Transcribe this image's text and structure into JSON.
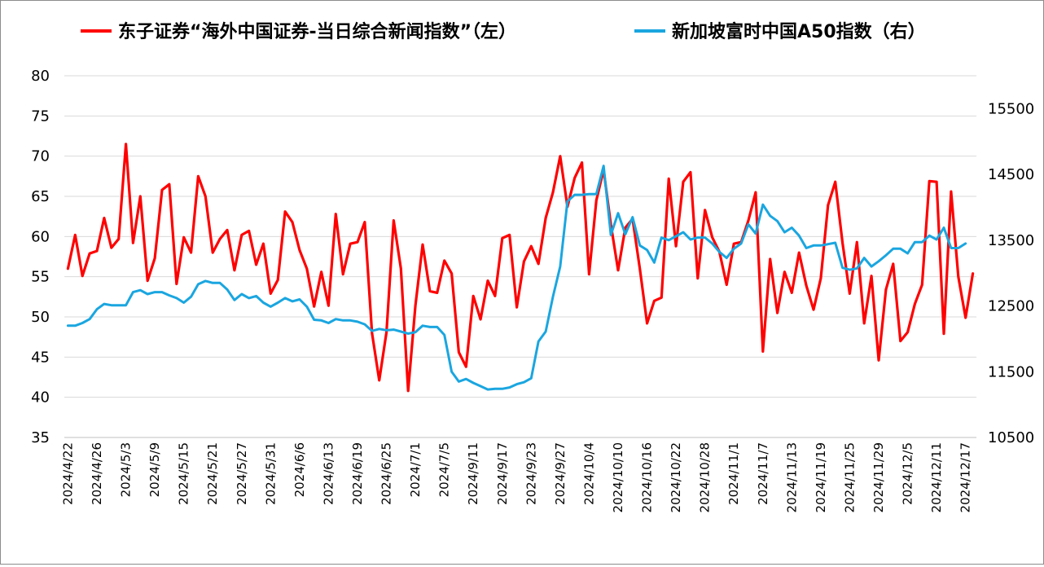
{
  "chart_data": {
    "type": "line",
    "title": "",
    "xlabel": "",
    "ylabel_left": "",
    "ylabel_right": "",
    "legend_position": "top",
    "grid": true,
    "ylim_left": [
      35,
      80
    ],
    "ylim_right": [
      10500,
      16000
    ],
    "yticks_left": [
      35,
      40,
      45,
      50,
      55,
      60,
      65,
      70,
      75,
      80
    ],
    "yticks_right": [
      10500,
      11500,
      12500,
      13500,
      14500,
      15500
    ],
    "x_tick_labels": [
      "2024/4/22",
      "2024/4/26",
      "2024/5/3",
      "2024/5/9",
      "2024/5/15",
      "2024/5/21",
      "2024/5/27",
      "2024/5/31",
      "2024/6/6",
      "2024/6/13",
      "2024/6/19",
      "2024/6/25",
      "2024/7/1",
      "2024/7/5",
      "2024/9/11",
      "2024/9/17",
      "2024/9/23",
      "2024/9/27",
      "2024/10/4",
      "2024/10/10",
      "2024/10/16",
      "2024/10/22",
      "2024/10/28",
      "2024/11/1",
      "2024/11/7",
      "2024/11/13",
      "2024/11/19",
      "2024/11/25",
      "2024/11/29",
      "2024/12/5",
      "2024/12/11",
      "2024/12/17"
    ],
    "x_tick_every": 4,
    "series": [
      {
        "name": "东子证券“海外中国证券-当日综合新闻指数”（左）",
        "axis": "left",
        "color": "#ff0000",
        "values": [
          56.0,
          60.2,
          55.1,
          57.9,
          58.2,
          62.3,
          58.6,
          59.7,
          71.5,
          59.2,
          65.0,
          54.5,
          57.3,
          65.8,
          66.5,
          54.1,
          59.9,
          58.0,
          67.5,
          65.0,
          58.0,
          59.7,
          60.8,
          55.8,
          60.2,
          60.7,
          56.5,
          59.1,
          52.9,
          54.6,
          63.1,
          61.8,
          58.3,
          56.0,
          51.3,
          55.6,
          51.4,
          62.8,
          55.3,
          59.1,
          59.3,
          61.8,
          48.0,
          42.1,
          48.1,
          62.0,
          56.0,
          40.8,
          51.4,
          59.0,
          53.2,
          53.0,
          57.0,
          55.4,
          45.6,
          43.8,
          52.6,
          49.7,
          54.5,
          52.6,
          59.8,
          60.2,
          51.2,
          56.9,
          58.8,
          56.6,
          62.3,
          65.5,
          70.0,
          63.7,
          67.3,
          69.2,
          55.3,
          64.5,
          68.3,
          61.5,
          55.8,
          61.1,
          62.2,
          56.0,
          49.2,
          52.0,
          52.4,
          67.2,
          58.8,
          66.8,
          68.0,
          54.8,
          63.3,
          59.9,
          58.1,
          54.0,
          59.1,
          59.3,
          62.0,
          65.5,
          45.7,
          57.2,
          50.5,
          55.6,
          53.0,
          58.0,
          53.9,
          50.9,
          54.8,
          63.9,
          66.8,
          59.2,
          52.9,
          59.3,
          49.2,
          55.1,
          44.6,
          53.4,
          56.6,
          47.0,
          48.1,
          51.6,
          54.0,
          66.9,
          66.8,
          47.9,
          65.6,
          55.0,
          49.9,
          55.4
        ]
      },
      {
        "name": "新加坡富时中国A50指数（右）",
        "axis": "right",
        "color": "#1aa6e0",
        "values": [
          12200,
          12200,
          12240,
          12300,
          12450,
          12530,
          12510,
          12510,
          12510,
          12710,
          12740,
          12680,
          12710,
          12710,
          12660,
          12620,
          12550,
          12640,
          12830,
          12880,
          12850,
          12850,
          12750,
          12590,
          12680,
          12620,
          12650,
          12550,
          12490,
          12550,
          12620,
          12570,
          12600,
          12490,
          12290,
          12280,
          12240,
          12300,
          12280,
          12280,
          12260,
          12220,
          12120,
          12150,
          12130,
          12140,
          12110,
          12080,
          12100,
          12200,
          12180,
          12180,
          12060,
          11500,
          11350,
          11390,
          11330,
          11280,
          11230,
          11240,
          11240,
          11260,
          11310,
          11340,
          11400,
          11960,
          12110,
          12640,
          13100,
          14090,
          14190,
          14190,
          14200,
          14200,
          14630,
          13580,
          13910,
          13590,
          13850,
          13420,
          13350,
          13160,
          13540,
          13500,
          13560,
          13620,
          13510,
          13540,
          13540,
          13450,
          13320,
          13230,
          13370,
          13450,
          13740,
          13600,
          14040,
          13870,
          13790,
          13620,
          13690,
          13570,
          13380,
          13420,
          13420,
          13440,
          13460,
          13080,
          13050,
          13070,
          13230,
          13100,
          13180,
          13270,
          13370,
          13370,
          13300,
          13470,
          13470,
          13570,
          13510,
          13690,
          13380,
          13380,
          13450
        ]
      }
    ]
  }
}
